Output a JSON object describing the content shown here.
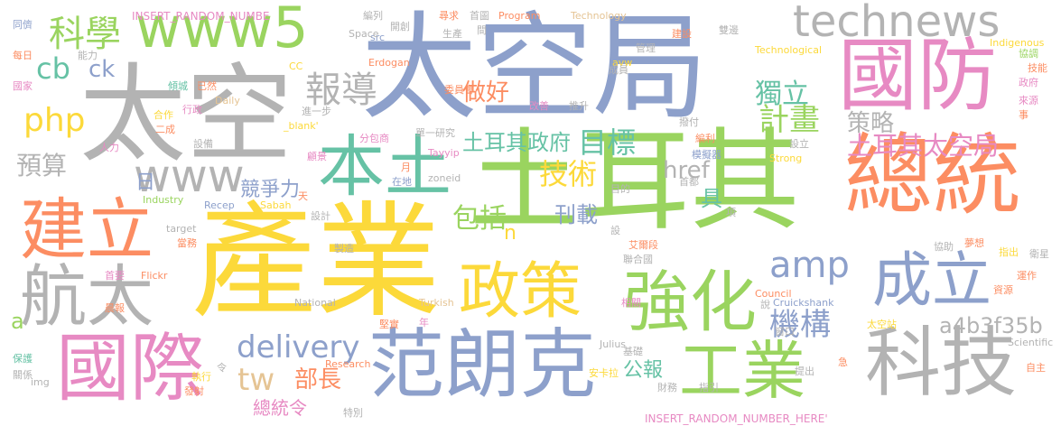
{
  "palette": {
    "yellow": "#fcd93a",
    "green": "#9ad45f",
    "blue": "#8da0cb",
    "gray": "#b3b3b3",
    "pink": "#e78ac3",
    "orange": "#fc8d62",
    "teal": "#66c2a5",
    "tan": "#e5c494"
  },
  "words": [
    {
      "text": "產業",
      "color": "#fcd93a"
    },
    {
      "text": "土耳其",
      "color": "#9ad45f"
    },
    {
      "text": "太空局",
      "color": "#8da0cb"
    },
    {
      "text": "太空",
      "color": "#b3b3b3"
    },
    {
      "text": "總統",
      "color": "#fc8d62"
    },
    {
      "text": "國防",
      "color": "#e78ac3"
    },
    {
      "text": "國際",
      "color": "#e78ac3"
    },
    {
      "text": "范朗克",
      "color": "#8da0cb"
    },
    {
      "text": "科技",
      "color": "#b3b3b3"
    },
    {
      "text": "建立",
      "color": "#fc8d62"
    },
    {
      "text": "航太",
      "color": "#b3b3b3"
    },
    {
      "text": "強化",
      "color": "#9ad45f"
    },
    {
      "text": "政策",
      "color": "#fcd93a"
    },
    {
      "text": "本土",
      "color": "#66c2a5"
    },
    {
      "text": "工業",
      "color": "#9ad45f"
    },
    {
      "text": "成立",
      "color": "#8da0cb"
    },
    {
      "text": "www5",
      "color": "#9ad45f"
    },
    {
      "text": "technews",
      "color": "#b3b3b3"
    },
    {
      "text": "www",
      "color": "#b3b3b3"
    },
    {
      "text": "科學",
      "color": "#9ad45f"
    },
    {
      "text": "php",
      "color": "#fcd93a"
    },
    {
      "text": "cb",
      "color": "#66c2a5"
    },
    {
      "text": "ck",
      "color": "#8da0cb"
    },
    {
      "text": "報導",
      "color": "#b3b3b3"
    },
    {
      "text": "做好",
      "color": "#fc8d62"
    },
    {
      "text": "獨立",
      "color": "#66c2a5"
    },
    {
      "text": "策略",
      "color": "#b3b3b3"
    },
    {
      "text": "計畫",
      "color": "#9ad45f"
    },
    {
      "text": "目標",
      "color": "#66c2a5"
    },
    {
      "text": "土耳其政府",
      "color": "#66c2a5"
    },
    {
      "text": "土耳其太空局",
      "color": "#e78ac3"
    },
    {
      "text": "技術",
      "color": "#fcd93a"
    },
    {
      "text": "href",
      "color": "#b3b3b3"
    },
    {
      "text": "預算",
      "color": "#b3b3b3"
    },
    {
      "text": "amp",
      "color": "#8da0cb"
    },
    {
      "text": "delivery",
      "color": "#8da0cb"
    },
    {
      "text": "機構",
      "color": "#8da0cb"
    },
    {
      "text": "a4b3f35b",
      "color": "#b3b3b3"
    },
    {
      "text": "tw",
      "color": "#e5c494"
    },
    {
      "text": "部長",
      "color": "#fc8d62"
    },
    {
      "text": "公報",
      "color": "#66c2a5"
    },
    {
      "text": "競爭力",
      "color": "#8da0cb"
    },
    {
      "text": "包括",
      "color": "#9ad45f"
    },
    {
      "text": "刊載",
      "color": "#8da0cb"
    },
    {
      "text": "總統令",
      "color": "#e78ac3"
    },
    {
      "text": "具",
      "color": "#66c2a5"
    },
    {
      "text": "n",
      "color": "#fcd93a"
    },
    {
      "text": "a",
      "color": "#9ad45f"
    },
    {
      "text": "日",
      "color": "#8da0cb"
    },
    {
      "text": "INSERT_RANDOM_NUMBE",
      "color": "#e78ac3"
    },
    {
      "text": "INSERT_RANDOM_NUMBER_HERE'",
      "color": "#e78ac3"
    },
    {
      "text": "Program",
      "color": "#fc8d62"
    },
    {
      "text": "Technology",
      "color": "#e5c494"
    },
    {
      "text": "Technological",
      "color": "#fcd93a"
    },
    {
      "text": "Indigenous",
      "color": "#fcd93a"
    },
    {
      "text": "Erdogan",
      "color": "#fc8d62"
    },
    {
      "text": "avw",
      "color": "#fcd93a"
    },
    {
      "text": "src",
      "color": "#8da0cb"
    },
    {
      "text": "Space",
      "color": "#b3b3b3"
    },
    {
      "text": "CC",
      "color": "#fcd93a"
    },
    {
      "text": "Daily",
      "color": "#e5c494"
    },
    {
      "text": "_blank'",
      "color": "#fcd93a"
    },
    {
      "text": "Tayyip",
      "color": "#e78ac3"
    },
    {
      "text": "zoneid",
      "color": "#b3b3b3"
    },
    {
      "text": "Strong",
      "color": "#fcd93a"
    },
    {
      "text": "Industry",
      "color": "#9ad45f"
    },
    {
      "text": "Recep",
      "color": "#8da0cb"
    },
    {
      "text": "Sabah",
      "color": "#fcd93a"
    },
    {
      "text": "target",
      "color": "#b3b3b3"
    },
    {
      "text": "Council",
      "color": "#fc8d62"
    },
    {
      "text": "Flickr",
      "color": "#fc8d62"
    },
    {
      "text": "National",
      "color": "#b3b3b3"
    },
    {
      "text": "Turkish",
      "color": "#e5c494"
    },
    {
      "text": "Julius",
      "color": "#b3b3b3"
    },
    {
      "text": "Cruickshank",
      "color": "#8da0cb"
    },
    {
      "text": "Research",
      "color": "#fc8d62"
    },
    {
      "text": "Scientific",
      "color": "#b3b3b3"
    },
    {
      "text": "img",
      "color": "#b3b3b3"
    },
    {
      "text": "同儕",
      "color": "#8da0cb"
    },
    {
      "text": "每日",
      "color": "#fc8d62"
    },
    {
      "text": "國家",
      "color": "#e78ac3"
    },
    {
      "text": "能力",
      "color": "#b3b3b3"
    },
    {
      "text": "傾城",
      "color": "#66c2a5"
    },
    {
      "text": "已然",
      "color": "#fc8d62"
    },
    {
      "text": "行政",
      "color": "#e78ac3"
    },
    {
      "text": "合作",
      "color": "#fcd93a"
    },
    {
      "text": "二成",
      "color": "#fc8d62"
    },
    {
      "text": "人力",
      "color": "#e78ac3"
    },
    {
      "text": "設備",
      "color": "#b3b3b3"
    },
    {
      "text": "顧景",
      "color": "#e78ac3"
    },
    {
      "text": "天",
      "color": "#fc8d62"
    },
    {
      "text": "設計",
      "color": "#b3b3b3"
    },
    {
      "text": "當務",
      "color": "#fc8d62"
    },
    {
      "text": "首要",
      "color": "#e78ac3"
    },
    {
      "text": "晨報",
      "color": "#fc8d62"
    },
    {
      "text": "保護",
      "color": "#66c2a5"
    },
    {
      "text": "關係",
      "color": "#b3b3b3"
    },
    {
      "text": "執行",
      "color": "#fcd93a"
    },
    {
      "text": "發射",
      "color": "#fc8d62"
    },
    {
      "text": "特別",
      "color": "#b3b3b3"
    },
    {
      "text": "令",
      "color": "#b3b3b3"
    },
    {
      "text": "堅實",
      "color": "#fc8d62"
    },
    {
      "text": "年",
      "color": "#e78ac3"
    },
    {
      "text": "製造",
      "color": "#b3b3b3"
    },
    {
      "text": "在地",
      "color": "#8da0cb"
    },
    {
      "text": "月",
      "color": "#fc8d62"
    },
    {
      "text": "分包商",
      "color": "#e78ac3"
    },
    {
      "text": "單一",
      "color": "#b3b3b3"
    },
    {
      "text": "研究",
      "color": "#b3b3b3"
    },
    {
      "text": "進一步",
      "color": "#b3b3b3"
    },
    {
      "text": "委員會",
      "color": "#fc8d62"
    },
    {
      "text": "改善",
      "color": "#e78ac3"
    },
    {
      "text": "推升",
      "color": "#b3b3b3"
    },
    {
      "text": "撥付",
      "color": "#b3b3b3"
    },
    {
      "text": "編利",
      "color": "#fc8d62"
    },
    {
      "text": "模擬器",
      "color": "#8da0cb"
    },
    {
      "text": "設立",
      "color": "#b3b3b3"
    },
    {
      "text": "首都",
      "color": "#b3b3b3"
    },
    {
      "text": "目的",
      "color": "#b3b3b3"
    },
    {
      "text": "項",
      "color": "#b3b3b3"
    },
    {
      "text": "艾爾段",
      "color": "#fc8d62"
    },
    {
      "text": "設",
      "color": "#b3b3b3"
    },
    {
      "text": "聯合國",
      "color": "#b3b3b3"
    },
    {
      "text": "協助",
      "color": "#b3b3b3"
    },
    {
      "text": "夢想",
      "color": "#fc8d62"
    },
    {
      "text": "指出",
      "color": "#fcd93a"
    },
    {
      "text": "衛星",
      "color": "#b3b3b3"
    },
    {
      "text": "運作",
      "color": "#fc8d62"
    },
    {
      "text": "資源",
      "color": "#fc8d62"
    },
    {
      "text": "說",
      "color": "#b3b3b3"
    },
    {
      "text": "相關",
      "color": "#e78ac3"
    },
    {
      "text": "窗口",
      "color": "#b3b3b3"
    },
    {
      "text": "太空站",
      "color": "#fcd93a"
    },
    {
      "text": "基礎",
      "color": "#b3b3b3"
    },
    {
      "text": "財務",
      "color": "#b3b3b3"
    },
    {
      "text": "安卡拉",
      "color": "#fcd93a"
    },
    {
      "text": "指引",
      "color": "#b3b3b3"
    },
    {
      "text": "提出",
      "color": "#b3b3b3"
    },
    {
      "text": "急",
      "color": "#fc8d62"
    },
    {
      "text": "自主",
      "color": "#fc8d62"
    },
    {
      "text": "事",
      "color": "#fc8d62"
    },
    {
      "text": "來源",
      "color": "#e78ac3"
    },
    {
      "text": "政府",
      "color": "#e78ac3"
    },
    {
      "text": "技能",
      "color": "#fc8d62"
    },
    {
      "text": "協調",
      "color": "#9ad45f"
    },
    {
      "text": "雙邊",
      "color": "#b3b3b3"
    },
    {
      "text": "建設",
      "color": "#fc8d62"
    },
    {
      "text": "管理",
      "color": "#b3b3b3"
    },
    {
      "text": "成員",
      "color": "#b3b3b3"
    },
    {
      "text": "尋求",
      "color": "#fc8d62"
    },
    {
      "text": "首圖",
      "color": "#b3b3b3"
    },
    {
      "text": "編列",
      "color": "#b3b3b3"
    },
    {
      "text": "開創",
      "color": "#b3b3b3"
    },
    {
      "text": "間",
      "color": "#b3b3b3"
    },
    {
      "text": "生產",
      "color": "#b3b3b3"
    }
  ]
}
